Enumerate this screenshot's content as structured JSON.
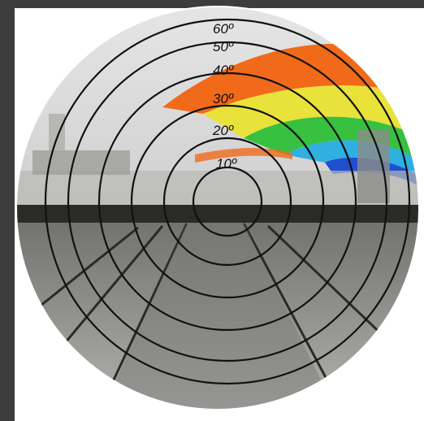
{
  "diagram": {
    "title": "",
    "ring_labels": [
      {
        "ring": 1,
        "text": "10º"
      },
      {
        "ring": 2,
        "text": "20º"
      },
      {
        "ring": 3,
        "text": "30º"
      },
      {
        "ring": 4,
        "text": "40º"
      },
      {
        "ring": 5,
        "text": "50º"
      },
      {
        "ring": 6,
        "text": "60º"
      }
    ],
    "colors": {
      "background": "#3c3c3c",
      "panel": "#ffffff",
      "sky": "#dcdcdc",
      "ground": "#8a8a88",
      "rings": "#111111",
      "band_orange": "#f06a1a",
      "band_yellow": "#e8e23a",
      "band_green": "#38c040",
      "band_cyan": "#30b0e0",
      "band_blue": "#2050d0"
    }
  }
}
